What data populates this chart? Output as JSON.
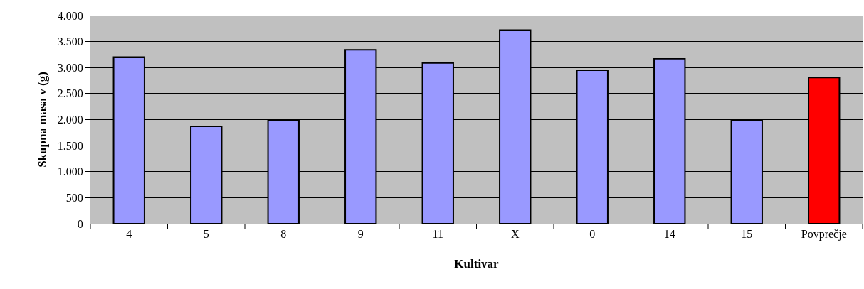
{
  "chart_data": {
    "type": "bar",
    "xlabel": "Kultivar",
    "ylabel": "Skupna masa v (g)",
    "categories": [
      "4",
      "5",
      "8",
      "9",
      "11",
      "X",
      "0",
      "14",
      "15",
      "Povprečje"
    ],
    "values": [
      3200,
      1870,
      1980,
      3340,
      3090,
      3720,
      2950,
      3170,
      1980,
      2810
    ],
    "colors": [
      "#9999ff",
      "#9999ff",
      "#9999ff",
      "#9999ff",
      "#9999ff",
      "#9999ff",
      "#9999ff",
      "#9999ff",
      "#9999ff",
      "#ff0000"
    ],
    "ylim": [
      0,
      4000
    ],
    "yticks": [
      0,
      500,
      {
        "value": 1000,
        "label": "1.000"
      },
      {
        "value": 1500,
        "label": "1.500"
      },
      {
        "value": 2000,
        "label": "2.000"
      },
      {
        "value": 2500,
        "label": "2.500"
      },
      {
        "value": 3000,
        "label": "3.000"
      },
      {
        "value": 3500,
        "label": "3.500"
      },
      {
        "value": 4000,
        "label": "4.000"
      }
    ],
    "grid": "y"
  }
}
